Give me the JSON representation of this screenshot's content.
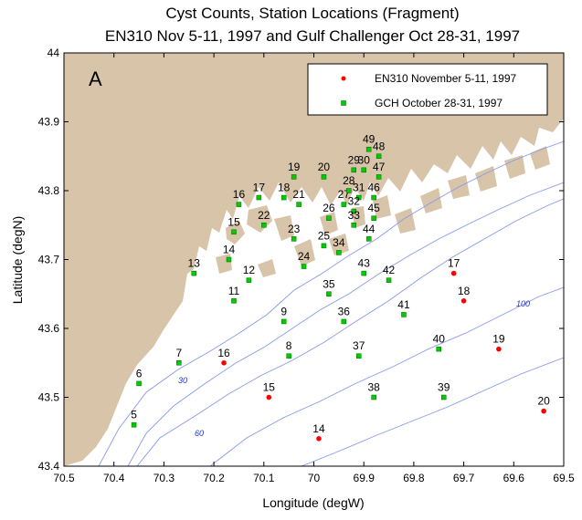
{
  "chart_data": {
    "type": "scatter",
    "title_line1": "Cyst Counts, Station Locations  (Fragment)",
    "title_line2": "EN310 Nov 5-11, 1997 and Gulf Challenger Oct 28-31, 1997",
    "panel_label": "A",
    "xlabel": "Longitude (degW)",
    "ylabel": "Latitude (degN)",
    "xlim": [
      70.5,
      69.5
    ],
    "ylim": [
      43.4,
      44.0
    ],
    "x_ticks": [
      "70.5",
      "70.4",
      "70.3",
      "70.2",
      "70.1",
      "70",
      "69.9",
      "69.8",
      "69.7",
      "69.6",
      "69.5"
    ],
    "y_ticks": [
      "43.4",
      "43.5",
      "43.6",
      "43.7",
      "43.8",
      "43.9",
      "44"
    ],
    "legend_position": "top-right",
    "colors": {
      "en310": "#ff0000",
      "gch": "#00cc00",
      "land": "#d8c4a8",
      "contour": "#8899ee"
    },
    "contour_labels": [
      "30",
      "60",
      "100"
    ],
    "series": [
      {
        "name": "EN310 November 5-11, 1997",
        "marker": "circle",
        "points": [
          {
            "id": "14",
            "lon": 69.99,
            "lat": 43.44
          },
          {
            "id": "15",
            "lon": 70.09,
            "lat": 43.5
          },
          {
            "id": "16",
            "lon": 70.18,
            "lat": 43.55
          },
          {
            "id": "17",
            "lon": 69.72,
            "lat": 43.68
          },
          {
            "id": "18",
            "lon": 69.7,
            "lat": 43.64
          },
          {
            "id": "19",
            "lon": 69.63,
            "lat": 43.57
          },
          {
            "id": "20",
            "lon": 69.54,
            "lat": 43.48
          }
        ]
      },
      {
        "name": "GCH October 28-31, 1997",
        "marker": "square",
        "points": [
          {
            "id": "5",
            "lon": 70.36,
            "lat": 43.46
          },
          {
            "id": "6",
            "lon": 70.35,
            "lat": 43.52
          },
          {
            "id": "7",
            "lon": 70.27,
            "lat": 43.55
          },
          {
            "id": "8",
            "lon": 70.05,
            "lat": 43.56
          },
          {
            "id": "9",
            "lon": 70.06,
            "lat": 43.61
          },
          {
            "id": "11",
            "lon": 70.16,
            "lat": 43.64
          },
          {
            "id": "12",
            "lon": 70.13,
            "lat": 43.67
          },
          {
            "id": "13",
            "lon": 70.24,
            "lat": 43.68
          },
          {
            "id": "14",
            "lon": 70.17,
            "lat": 43.7
          },
          {
            "id": "15",
            "lon": 70.16,
            "lat": 43.74
          },
          {
            "id": "16",
            "lon": 70.15,
            "lat": 43.78
          },
          {
            "id": "17",
            "lon": 70.11,
            "lat": 43.79
          },
          {
            "id": "18",
            "lon": 70.06,
            "lat": 43.79
          },
          {
            "id": "19",
            "lon": 70.04,
            "lat": 43.82
          },
          {
            "id": "20",
            "lon": 69.98,
            "lat": 43.82
          },
          {
            "id": "21",
            "lon": 70.03,
            "lat": 43.78
          },
          {
            "id": "22",
            "lon": 70.1,
            "lat": 43.75
          },
          {
            "id": "23",
            "lon": 70.04,
            "lat": 43.73
          },
          {
            "id": "24",
            "lon": 70.02,
            "lat": 43.69
          },
          {
            "id": "25",
            "lon": 69.98,
            "lat": 43.72
          },
          {
            "id": "26",
            "lon": 69.97,
            "lat": 43.76
          },
          {
            "id": "27",
            "lon": 69.94,
            "lat": 43.78
          },
          {
            "id": "28",
            "lon": 69.93,
            "lat": 43.8
          },
          {
            "id": "29",
            "lon": 69.92,
            "lat": 43.83
          },
          {
            "id": "30",
            "lon": 69.9,
            "lat": 43.83
          },
          {
            "id": "31",
            "lon": 69.91,
            "lat": 43.79
          },
          {
            "id": "32",
            "lon": 69.92,
            "lat": 43.77
          },
          {
            "id": "33",
            "lon": 69.92,
            "lat": 43.75
          },
          {
            "id": "34",
            "lon": 69.95,
            "lat": 43.71
          },
          {
            "id": "35",
            "lon": 69.97,
            "lat": 43.65
          },
          {
            "id": "36",
            "lon": 69.94,
            "lat": 43.61
          },
          {
            "id": "37",
            "lon": 69.91,
            "lat": 43.56
          },
          {
            "id": "38",
            "lon": 69.88,
            "lat": 43.5
          },
          {
            "id": "39",
            "lon": 69.74,
            "lat": 43.5
          },
          {
            "id": "40",
            "lon": 69.75,
            "lat": 43.57
          },
          {
            "id": "41",
            "lon": 69.82,
            "lat": 43.62
          },
          {
            "id": "42",
            "lon": 69.85,
            "lat": 43.67
          },
          {
            "id": "43",
            "lon": 69.9,
            "lat": 43.68
          },
          {
            "id": "44",
            "lon": 69.89,
            "lat": 43.73
          },
          {
            "id": "45",
            "lon": 69.88,
            "lat": 43.76
          },
          {
            "id": "46",
            "lon": 69.88,
            "lat": 43.79
          },
          {
            "id": "47",
            "lon": 69.87,
            "lat": 43.82
          },
          {
            "id": "48",
            "lon": 69.87,
            "lat": 43.85
          },
          {
            "id": "49",
            "lon": 69.89,
            "lat": 43.86
          }
        ]
      }
    ]
  }
}
